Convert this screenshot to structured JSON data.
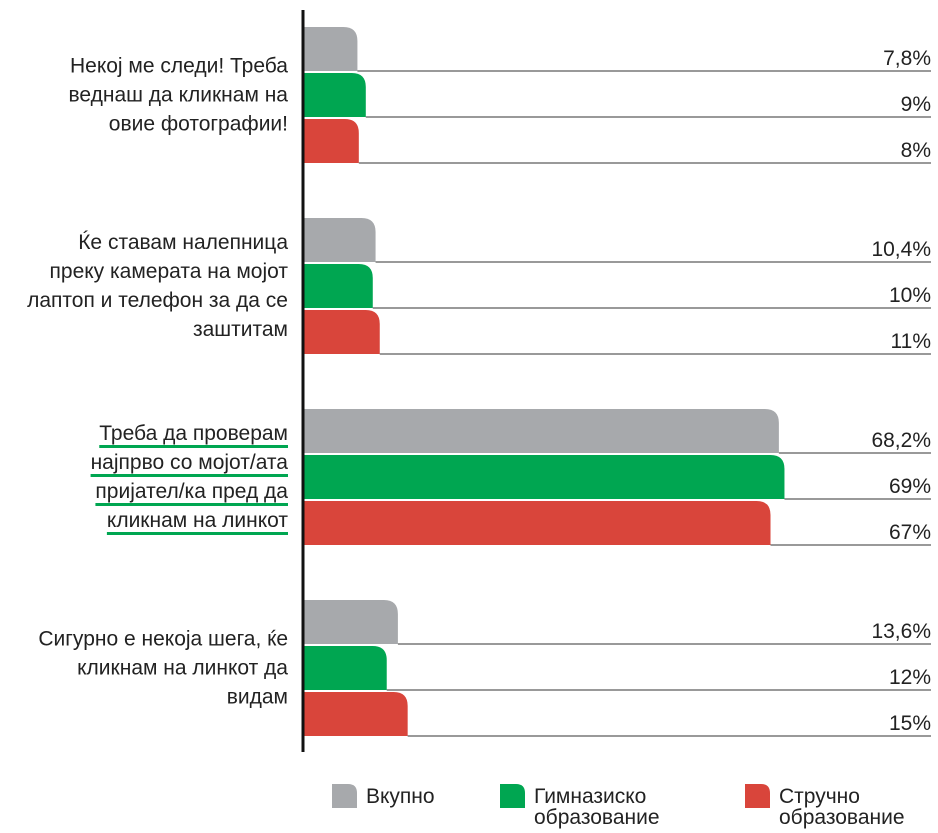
{
  "chart_data": {
    "type": "bar",
    "orientation": "horizontal",
    "categories": [
      "Некој ме следи! Треба веднаш да кликнам на овие фотографии!",
      "Ќе ставам налепница преку камерата на мојот лаптоп и телефон за да се заштитам",
      "Треба да проверам најпрво со мојот/ата пријател/ка пред да кликнам на линкот",
      "Сигурно е некоја шега, ќе кликнам на линкот да видам"
    ],
    "highlight_category": 2,
    "series": [
      {
        "name": "Вкупно",
        "color": "#a7a9ac",
        "values": [
          7.8,
          10.4,
          68.2,
          13.6
        ],
        "value_labels": [
          "7,8%",
          "10,4%",
          "68,2%",
          "13,6%"
        ]
      },
      {
        "name": "Гимназиско образование",
        "color": "#00a651",
        "values": [
          9,
          10,
          69,
          12
        ],
        "value_labels": [
          "9%",
          "10%",
          "69%",
          "12%"
        ]
      },
      {
        "name": "Стручно образование",
        "color": "#d9453b",
        "values": [
          8,
          11,
          67,
          15
        ],
        "value_labels": [
          "8%",
          "11%",
          "67%",
          "15%"
        ]
      }
    ],
    "xlim": [
      0,
      90
    ],
    "legend": "bottom"
  }
}
